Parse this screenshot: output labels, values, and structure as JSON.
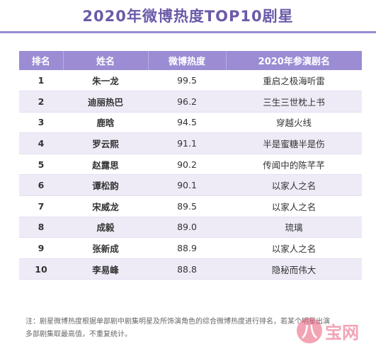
{
  "title": "2020年微博热度TOP10剧星",
  "table": {
    "headers": [
      "排名",
      "姓名",
      "微博热度",
      "2020年参演剧名"
    ],
    "rows": [
      {
        "rank": "1",
        "name": "朱一龙",
        "score": "99.5",
        "drama": "重启之极海听雷"
      },
      {
        "rank": "2",
        "name": "迪丽热巴",
        "score": "96.2",
        "drama": "三生三世枕上书"
      },
      {
        "rank": "3",
        "name": "鹿晗",
        "score": "94.5",
        "drama": "穿越火线"
      },
      {
        "rank": "4",
        "name": "罗云熙",
        "score": "91.1",
        "drama": "半是蜜糖半是伤"
      },
      {
        "rank": "5",
        "name": "赵露思",
        "score": "90.2",
        "drama": "传闻中的陈芊芊"
      },
      {
        "rank": "6",
        "name": "谭松韵",
        "score": "90.1",
        "drama": "以家人之名"
      },
      {
        "rank": "7",
        "name": "宋威龙",
        "score": "89.5",
        "drama": "以家人之名"
      },
      {
        "rank": "8",
        "name": "成毅",
        "score": "89.0",
        "drama": "琉璃"
      },
      {
        "rank": "9",
        "name": "张新成",
        "score": "88.9",
        "drama": "以家人之名"
      },
      {
        "rank": "10",
        "name": "李易峰",
        "score": "88.8",
        "drama": "隐秘而伟大"
      }
    ]
  },
  "note": "注：剧星微博热度根据单部剧中剧集明星及所饰演角色的综合微博热度进行排名，若某个明星出演多部剧集取最高值，不重复统计。",
  "watermark": {
    "glyph": "八",
    "text": "宝网"
  }
}
